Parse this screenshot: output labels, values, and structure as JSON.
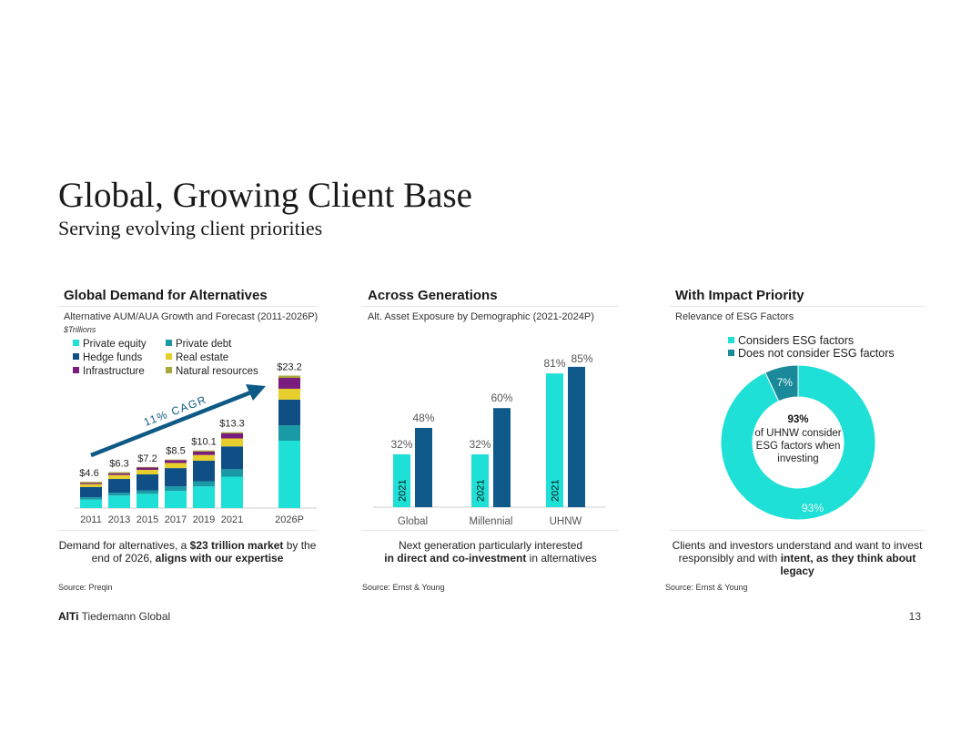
{
  "page": {
    "title": "Global, Growing Client Base",
    "subtitle": "Serving evolving client priorities",
    "brand_bold": "AlTi",
    "brand_rest": " Tiedemann Global",
    "page_number": "13"
  },
  "colors": {
    "private_equity": "#1fe0d6",
    "private_debt": "#1a9aa4",
    "hedge_funds": "#0f4f86",
    "real_estate": "#e6cf2c",
    "infrastructure": "#7a1c7e",
    "natural_resources": "#a8a83a",
    "bar_light": "#1fe0d6",
    "bar_dark": "#0f5a8a",
    "esg_considers": "#1fe0d6",
    "esg_not": "#1a8a9a",
    "arrow": "#0e5a86"
  },
  "panels": {
    "demand": {
      "title": "Global Demand for Alternatives",
      "subtitle": "Alternative AUM/AUA Growth and Forecast (2011-2026P)",
      "unit": "$Trillions",
      "cagr_label": "11% CAGR",
      "footnote_pre": "Demand for alternatives, a ",
      "footnote_bold1": "$23 trillion market",
      "footnote_mid": " by the end of 2026, ",
      "footnote_bold2": "aligns with our expertise",
      "source": "Source: Preqin"
    },
    "generations": {
      "title": "Across Generations",
      "subtitle": "Alt. Asset Exposure by Demographic (2021-2024P)",
      "footnote_line1": "Next generation particularly interested",
      "footnote_bold": "in direct and co-investment",
      "footnote_rest": " in alternatives",
      "source": "Source: Ernst & Young"
    },
    "impact": {
      "title": "With Impact Priority",
      "subtitle": "Relevance of ESG Factors",
      "center_pct": "93%",
      "center_text_1": "of UHNW consider",
      "center_text_2": "ESG factors when",
      "center_text_3": "investing",
      "footnote_pre": "Clients and investors understand and want to invest responsibly and with ",
      "footnote_bold": "intent, as they think about legacy",
      "source": "Source: Ernst & Young"
    }
  },
  "chart_data": [
    {
      "type": "bar",
      "stacked": true,
      "title": "Global Demand for Alternatives",
      "ylabel": "$Trillions",
      "categories": [
        "2011",
        "2013",
        "2015",
        "2017",
        "2019",
        "2021",
        "2026P"
      ],
      "totals": [
        "$4.6",
        "$6.3",
        "$7.2",
        "$8.5",
        "$10.1",
        "$13.3",
        "$23.2"
      ],
      "total_values": [
        4.6,
        6.3,
        7.2,
        8.5,
        10.1,
        13.3,
        23.2
      ],
      "ylim": [
        0,
        25
      ],
      "series": [
        {
          "name": "Private equity",
          "key": "private_equity",
          "values": [
            1.5,
            2.2,
            2.5,
            3.0,
            3.8,
            5.5,
            11.8
          ]
        },
        {
          "name": "Private debt",
          "key": "private_debt",
          "values": [
            0.4,
            0.5,
            0.6,
            0.8,
            0.9,
            1.3,
            2.7
          ]
        },
        {
          "name": "Hedge funds",
          "key": "hedge_funds",
          "values": [
            1.8,
            2.4,
            2.8,
            3.2,
            3.6,
            4.0,
            4.5
          ]
        },
        {
          "name": "Real estate",
          "key": "real_estate",
          "values": [
            0.5,
            0.7,
            0.8,
            0.9,
            1.0,
            1.4,
            1.9
          ]
        },
        {
          "name": "Infrastructure",
          "key": "infrastructure",
          "values": [
            0.2,
            0.3,
            0.4,
            0.5,
            0.6,
            0.9,
            1.9
          ]
        },
        {
          "name": "Natural resources",
          "key": "natural_resources",
          "values": [
            0.2,
            0.2,
            0.1,
            0.1,
            0.2,
            0.2,
            0.4
          ]
        }
      ]
    },
    {
      "type": "bar",
      "title": "Across Generations",
      "categories": [
        "Global",
        "Millennial",
        "UHNW"
      ],
      "series": [
        {
          "name": "2021",
          "values": [
            32,
            32,
            81
          ]
        },
        {
          "name": "2024P",
          "values": [
            48,
            60,
            85
          ]
        }
      ],
      "labels_2021": [
        "32%",
        "32%",
        "81%"
      ],
      "labels_2024": [
        "48%",
        "60%",
        "85%"
      ],
      "inbar_label": "2021",
      "ylim": [
        0,
        100
      ]
    },
    {
      "type": "pie",
      "donut": true,
      "title": "With Impact Priority",
      "slices": [
        {
          "name": "Considers ESG factors",
          "value": 93,
          "label": "93%"
        },
        {
          "name": "Does not consider ESG factors",
          "value": 7,
          "label": "7%"
        }
      ]
    }
  ]
}
